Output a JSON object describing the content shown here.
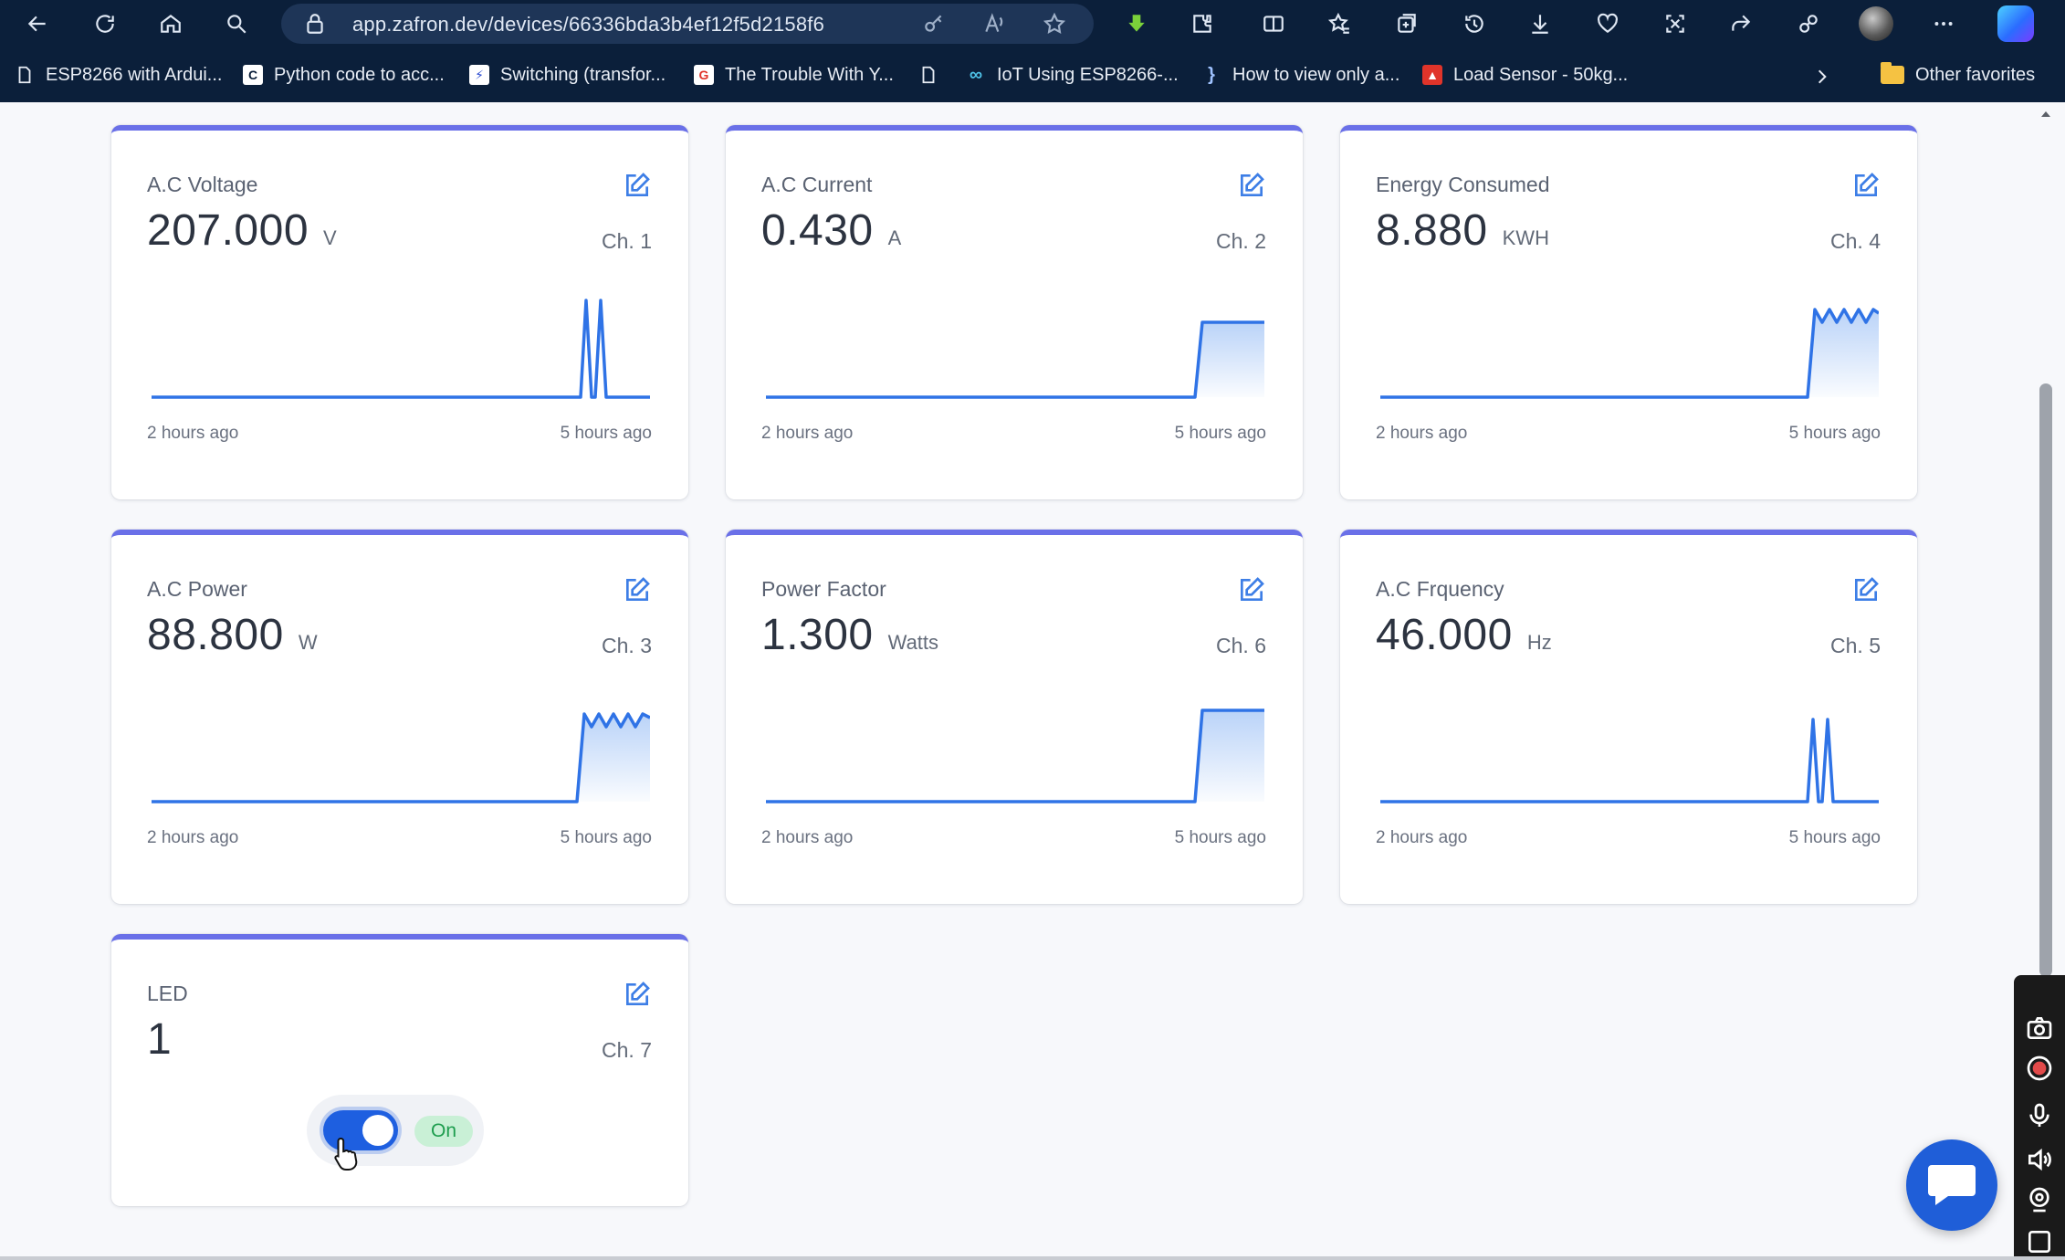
{
  "browser": {
    "url": "app.zafron.dev/devices/66336bda3b4ef12f5d2158f6",
    "bookmarks": [
      {
        "label": "ESP8266 with Ardui..."
      },
      {
        "label": "Python code to acc..."
      },
      {
        "label": "Switching (transfor..."
      },
      {
        "label": "The Trouble With Y..."
      },
      {
        "label": "IoT Using ESP8266-..."
      },
      {
        "label": "How to view only a..."
      },
      {
        "label": "Load Sensor - 50kg..."
      }
    ],
    "other_favorites": "Other favorites"
  },
  "widgets": [
    {
      "title": "A.C Voltage",
      "value": "207.000",
      "unit": "V",
      "channel": "Ch. 1",
      "time_left": "2 hours ago",
      "time_right": "5 hours ago"
    },
    {
      "title": "A.C Current",
      "value": "0.430",
      "unit": "A",
      "channel": "Ch. 2",
      "time_left": "2 hours ago",
      "time_right": "5 hours ago"
    },
    {
      "title": "Energy Consumed",
      "value": "8.880",
      "unit": "KWH",
      "channel": "Ch. 4",
      "time_left": "2 hours ago",
      "time_right": "5 hours ago"
    },
    {
      "title": "A.C Power",
      "value": "88.800",
      "unit": "W",
      "channel": "Ch. 3",
      "time_left": "2 hours ago",
      "time_right": "5 hours ago"
    },
    {
      "title": "Power Factor",
      "value": "1.300",
      "unit": "Watts",
      "channel": "Ch. 6",
      "time_left": "2 hours ago",
      "time_right": "5 hours ago"
    },
    {
      "title": "A.C Frquency",
      "value": "46.000",
      "unit": "Hz",
      "channel": "Ch. 5",
      "time_left": "2 hours ago",
      "time_right": "5 hours ago"
    }
  ],
  "led": {
    "title": "LED",
    "value": "1",
    "channel": "Ch. 7",
    "toggle_label": "On",
    "toggle_state": true
  },
  "colors": {
    "accent": "#6a70e8",
    "chart_line": "#2f73e6",
    "toggle_on": "#1e5fe0",
    "chrome_bg": "#0b1f3a"
  },
  "icons": [
    "back-icon",
    "refresh-icon",
    "home-icon",
    "search-icon",
    "lock-icon",
    "key-icon",
    "read-aloud-icon",
    "favorite-star-icon",
    "edit-icon",
    "chat-icon"
  ]
}
